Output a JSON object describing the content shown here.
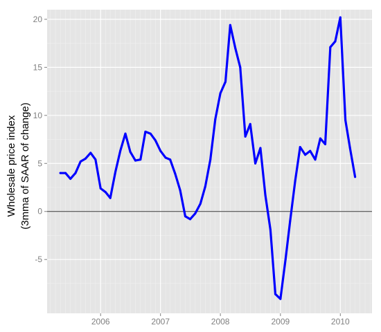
{
  "chart_data": {
    "type": "line",
    "title": "",
    "xlabel": "",
    "ylabel_lines": [
      "Wholesale price index",
      "(3mma of SAAR of change)"
    ],
    "x_tick_labels": [
      "2006",
      "2007",
      "2008",
      "2009",
      "2010"
    ],
    "y_tick_labels": [
      "-5",
      "0",
      "5",
      "10",
      "15",
      "20"
    ],
    "xlim": [
      "2005-02-09",
      "2010-07-13"
    ],
    "ylim": [
      -10.6,
      21.0
    ],
    "reference_line": 0,
    "grid": true,
    "colors": {
      "line": "#0000ff",
      "panel": "#e5e5e5",
      "grid_major": "#ffffff",
      "grid_minor": "#f2f2f2",
      "zero_line": "#333333"
    },
    "series": [
      {
        "x": [
          "2005-05-01",
          "2005-06-01",
          "2005-07-01",
          "2005-08-01",
          "2005-09-01",
          "2005-10-01",
          "2005-11-01",
          "2005-12-01",
          "2006-01-01",
          "2006-02-01",
          "2006-03-01",
          "2006-04-01",
          "2006-05-01",
          "2006-06-01",
          "2006-07-01",
          "2006-08-01",
          "2006-09-01",
          "2006-10-01",
          "2006-11-01",
          "2006-12-01",
          "2007-01-01",
          "2007-02-01",
          "2007-03-01",
          "2007-04-01",
          "2007-05-01",
          "2007-06-01",
          "2007-07-01",
          "2007-08-01",
          "2007-09-01",
          "2007-10-01",
          "2007-11-01",
          "2007-12-01",
          "2008-01-01",
          "2008-02-01",
          "2008-03-01",
          "2008-04-01",
          "2008-05-01",
          "2008-06-01",
          "2008-07-01",
          "2008-08-01",
          "2008-09-01",
          "2008-10-01",
          "2008-11-01",
          "2008-12-01",
          "2009-01-01",
          "2009-02-01",
          "2009-03-01",
          "2009-04-01",
          "2009-05-01",
          "2009-06-01",
          "2009-07-01",
          "2009-08-01",
          "2009-09-01",
          "2009-10-01",
          "2009-11-01",
          "2009-12-01",
          "2010-01-01",
          "2010-02-01",
          "2010-03-01",
          "2010-04-01"
        ],
        "values": [
          4.0,
          4.0,
          3.4,
          4.0,
          5.2,
          5.5,
          6.1,
          5.4,
          2.4,
          2.0,
          1.4,
          4.1,
          6.3,
          8.1,
          6.2,
          5.3,
          5.4,
          8.3,
          8.1,
          7.4,
          6.3,
          5.6,
          5.4,
          3.9,
          2.2,
          -0.5,
          -0.8,
          -0.2,
          0.8,
          2.6,
          5.4,
          9.6,
          12.3,
          13.5,
          19.4,
          17.0,
          15.0,
          7.8,
          9.1,
          5.0,
          6.6,
          1.7,
          -1.9,
          -8.6,
          -9.1,
          -5.0,
          -1.0,
          3.2,
          6.7,
          5.9,
          6.3,
          5.4,
          7.6,
          7.0,
          17.1,
          17.7,
          20.2,
          9.5,
          6.6,
          3.6
        ]
      }
    ]
  }
}
